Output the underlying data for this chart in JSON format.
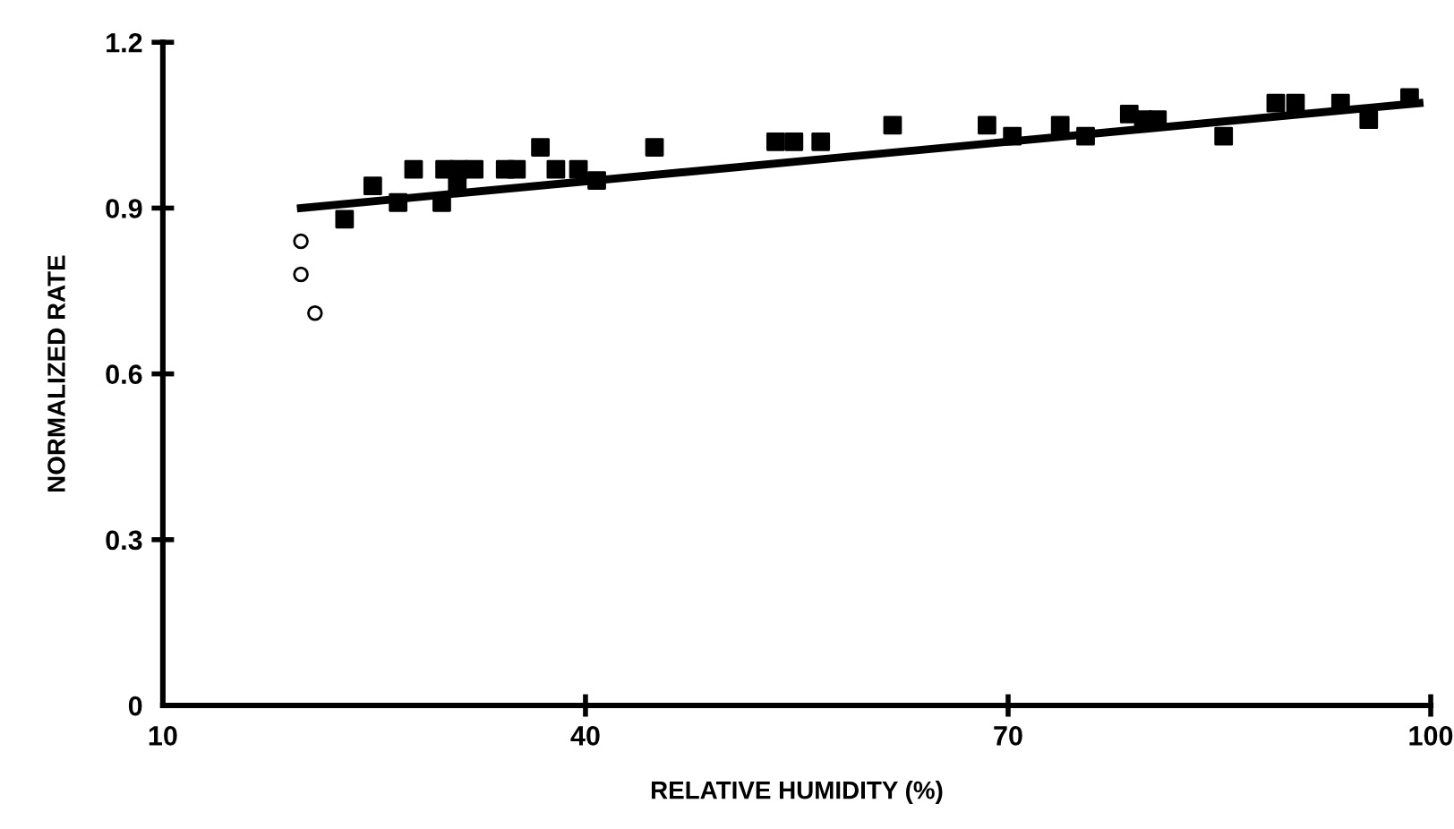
{
  "chart_data": {
    "type": "scatter",
    "xlabel": "RELATIVE HUMIDITY (%)",
    "ylabel": "NORMALIZED RATE",
    "xlim": [
      10,
      100
    ],
    "xticks": [
      10,
      40,
      70,
      100
    ],
    "ylim": [
      0,
      1.2
    ],
    "yticks": [
      0,
      0.3,
      0.6,
      0.9,
      1.2
    ],
    "grid": false,
    "legend": false,
    "series": [
      {
        "marker": "square",
        "color": "#000000",
        "x": [
          22.9,
          24.9,
          26.7,
          27.8,
          29.8,
          30.0,
          30.9,
          31.0,
          32.1,
          34.3,
          35.1,
          36.8,
          37.9,
          39.5,
          40.8,
          44.9,
          53.5,
          54.8,
          56.7,
          61.8,
          68.5,
          70.3,
          73.7,
          75.5,
          78.6,
          79.6,
          80.6,
          85.3,
          89.0,
          90.4,
          93.6,
          95.6,
          98.5
        ],
        "values": [
          0.88,
          0.94,
          0.91,
          0.97,
          0.91,
          0.97,
          0.94,
          0.97,
          0.97,
          0.97,
          0.97,
          1.01,
          0.97,
          0.97,
          0.95,
          1.01,
          1.02,
          1.02,
          1.02,
          1.05,
          1.05,
          1.03,
          1.05,
          1.03,
          1.07,
          1.06,
          1.06,
          1.03,
          1.09,
          1.09,
          1.09,
          1.06,
          1.1
        ]
      },
      {
        "marker": "circle",
        "color": "#000000",
        "x": [
          19.8,
          19.8,
          20.8
        ],
        "values": [
          0.84,
          0.78,
          0.71
        ]
      },
      {
        "type": "line",
        "marker": "none",
        "line_style": "solid",
        "color": "#000000",
        "x": [
          19.8,
          99.2
        ],
        "values": [
          0.9,
          1.09
        ]
      }
    ]
  }
}
